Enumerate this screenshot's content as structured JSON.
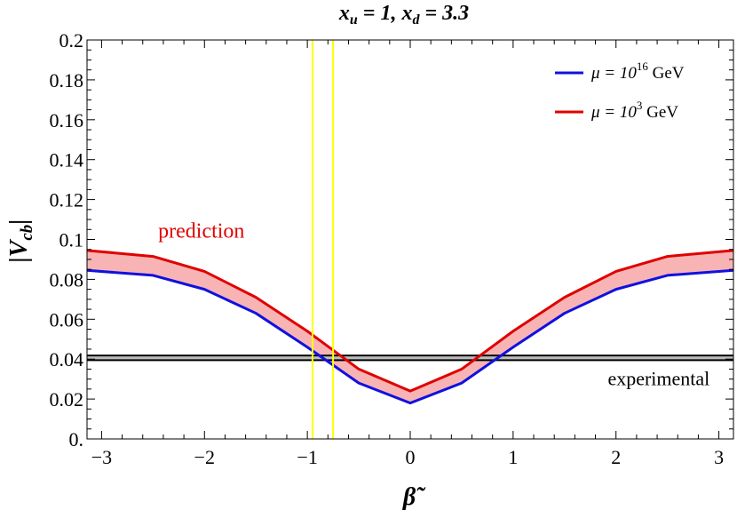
{
  "chart_data": {
    "type": "line",
    "title": {
      "x_var": "x",
      "x_sub": "u",
      "x_val": "1",
      "d_var": "x",
      "d_sub": "d",
      "d_val": "3.3"
    },
    "xlabel": "β̃",
    "ylabel": {
      "main": "V",
      "sub": "cb"
    },
    "xlim": [
      -3.1416,
      3.1416
    ],
    "ylim": [
      0,
      0.2
    ],
    "x_ticks": [
      -3,
      -2,
      -1,
      0,
      1,
      2,
      3
    ],
    "x_tick_labels": [
      "−3",
      "−2",
      "−1",
      "0",
      "1",
      "2",
      "3"
    ],
    "y_ticks": [
      0,
      0.02,
      0.04,
      0.06,
      0.08,
      0.1,
      0.12,
      0.14,
      0.16,
      0.18,
      0.2
    ],
    "y_tick_labels": [
      "0.",
      "0.02",
      "0.04",
      "0.06",
      "0.08",
      "0.1",
      "0.12",
      "0.14",
      "0.16",
      "0.18",
      "0.2"
    ],
    "grid": false,
    "legend_position": "top-right",
    "band_fill": "#f8b4b4",
    "series": [
      {
        "name_main": "μ = 10",
        "name_sup": "16",
        "name_unit": " GeV",
        "color": "#1010e0",
        "x": [
          -3.1416,
          -2.5,
          -2.0,
          -1.5,
          -1.0,
          -0.5,
          0.0,
          0.5,
          1.0,
          1.5,
          2.0,
          2.5,
          3.1416
        ],
        "y": [
          0.0845,
          0.082,
          0.075,
          0.063,
          0.046,
          0.028,
          0.018,
          0.028,
          0.046,
          0.063,
          0.075,
          0.082,
          0.0845
        ]
      },
      {
        "name_main": "μ = 10",
        "name_sup": "3",
        "name_unit": " GeV",
        "color": "#e00000",
        "x": [
          -3.1416,
          -2.5,
          -2.0,
          -1.5,
          -1.0,
          -0.5,
          0.0,
          0.5,
          1.0,
          1.5,
          2.0,
          2.5,
          3.1416
        ],
        "y": [
          0.0945,
          0.0915,
          0.084,
          0.071,
          0.054,
          0.035,
          0.024,
          0.035,
          0.054,
          0.071,
          0.084,
          0.0915,
          0.0945
        ]
      }
    ],
    "experimental_band": {
      "y_low": 0.0395,
      "y_high": 0.0418,
      "color": "#000000",
      "fill": "#bbbbbb"
    },
    "vertical_lines": {
      "x": [
        -0.95,
        -0.75
      ],
      "color": "#ffff00"
    },
    "annotations": {
      "prediction": {
        "text": "prediction",
        "x": -2.45,
        "y": 0.101
      },
      "experimental": {
        "text": "experimental",
        "x": 1.92,
        "y": 0.027
      }
    }
  }
}
